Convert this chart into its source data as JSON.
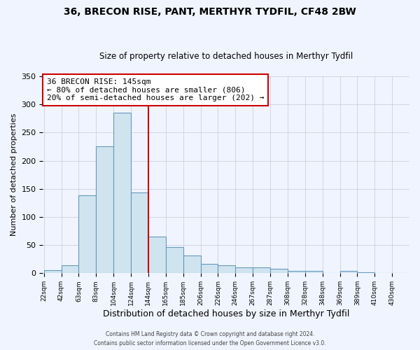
{
  "title": "36, BRECON RISE, PANT, MERTHYR TYDFIL, CF48 2BW",
  "subtitle": "Size of property relative to detached houses in Merthyr Tydfil",
  "xlabel": "Distribution of detached houses by size in Merthyr Tydfil",
  "ylabel": "Number of detached properties",
  "bar_color": "#d0e4f0",
  "bar_edge_color": "#6699bb",
  "bin_labels": [
    "22sqm",
    "42sqm",
    "63sqm",
    "83sqm",
    "104sqm",
    "124sqm",
    "144sqm",
    "165sqm",
    "185sqm",
    "206sqm",
    "226sqm",
    "246sqm",
    "267sqm",
    "287sqm",
    "308sqm",
    "328sqm",
    "348sqm",
    "369sqm",
    "389sqm",
    "410sqm",
    "430sqm"
  ],
  "bar_heights": [
    5,
    14,
    138,
    225,
    285,
    144,
    65,
    47,
    32,
    17,
    14,
    11,
    10,
    8,
    4,
    4,
    0,
    4,
    2,
    0,
    1
  ],
  "vline_color": "#cc0000",
  "ylim": [
    0,
    350
  ],
  "yticks": [
    0,
    50,
    100,
    150,
    200,
    250,
    300,
    350
  ],
  "annotation_text": "36 BRECON RISE: 145sqm\n← 80% of detached houses are smaller (806)\n20% of semi-detached houses are larger (202) →",
  "annotation_box_color": "#ffffff",
  "annotation_box_edge": "#cc0000",
  "footer1": "Contains HM Land Registry data © Crown copyright and database right 2024.",
  "footer2": "Contains public sector information licensed under the Open Government Licence v3.0.",
  "num_bins": 21,
  "vline_index": 6,
  "bg_color": "#f0f4ff"
}
